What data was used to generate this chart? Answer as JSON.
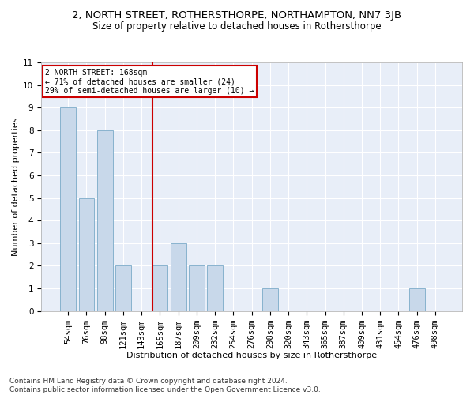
{
  "title1": "2, NORTH STREET, ROTHERSTHORPE, NORTHAMPTON, NN7 3JB",
  "title2": "Size of property relative to detached houses in Rothersthorpe",
  "xlabel": "Distribution of detached houses by size in Rothersthorpe",
  "ylabel": "Number of detached properties",
  "footer": "Contains HM Land Registry data © Crown copyright and database right 2024.\nContains public sector information licensed under the Open Government Licence v3.0.",
  "categories": [
    "54sqm",
    "76sqm",
    "98sqm",
    "121sqm",
    "143sqm",
    "165sqm",
    "187sqm",
    "209sqm",
    "232sqm",
    "254sqm",
    "276sqm",
    "298sqm",
    "320sqm",
    "343sqm",
    "365sqm",
    "387sqm",
    "409sqm",
    "431sqm",
    "454sqm",
    "476sqm",
    "498sqm"
  ],
  "values": [
    9,
    5,
    8,
    2,
    0,
    2,
    3,
    2,
    2,
    0,
    0,
    1,
    0,
    0,
    0,
    0,
    0,
    0,
    0,
    1,
    0
  ],
  "bar_color": "#c8d8ea",
  "bar_edge_color": "#7aaac8",
  "property_line_index": 5,
  "property_line_color": "#cc0000",
  "annotation_text": "2 NORTH STREET: 168sqm\n← 71% of detached houses are smaller (24)\n29% of semi-detached houses are larger (10) →",
  "annotation_box_color": "#cc0000",
  "ylim": [
    0,
    11
  ],
  "yticks": [
    0,
    1,
    2,
    3,
    4,
    5,
    6,
    7,
    8,
    9,
    10,
    11
  ],
  "background_color": "#e8eef8",
  "grid_color": "#ffffff",
  "title1_fontsize": 9.5,
  "title2_fontsize": 8.5,
  "xlabel_fontsize": 8,
  "ylabel_fontsize": 8,
  "tick_fontsize": 7.5,
  "footer_fontsize": 6.5
}
